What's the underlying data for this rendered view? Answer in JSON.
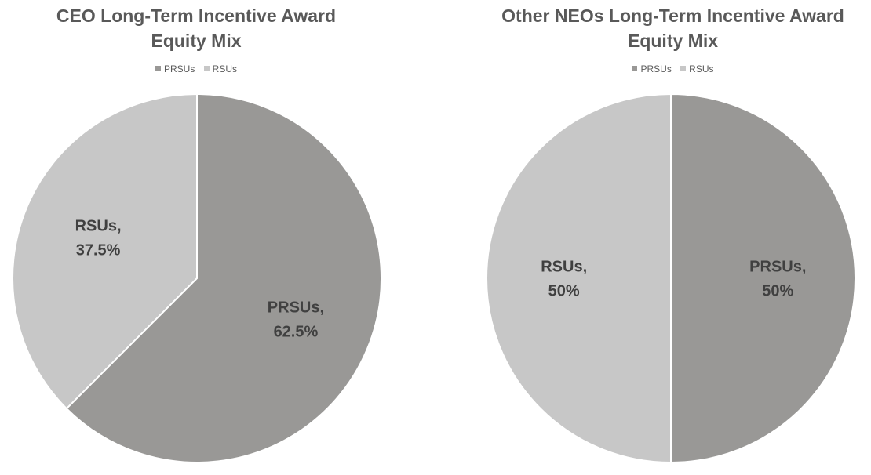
{
  "chart_data": [
    {
      "type": "pie",
      "title": "CEO Long-Term Incentive Award\nEquity Mix",
      "legend": [
        "PRSUs",
        "RSUs"
      ],
      "legend_position": "top",
      "slices": [
        {
          "name": "PRSUs",
          "value": 62.5,
          "label": "PRSUs,\n62.5%",
          "color": "#999896"
        },
        {
          "name": "RSUs",
          "value": 37.5,
          "label": "RSUs,\n37.5%",
          "color": "#c7c7c7"
        }
      ]
    },
    {
      "type": "pie",
      "title": "Other NEOs Long-Term Incentive Award\nEquity Mix",
      "legend": [
        "PRSUs",
        "RSUs"
      ],
      "legend_position": "top",
      "slices": [
        {
          "name": "PRSUs",
          "value": 50,
          "label": "PRSUs,\n50%",
          "color": "#999896"
        },
        {
          "name": "RSUs",
          "value": 50,
          "label": "RSUs,\n50%",
          "color": "#c7c7c7"
        }
      ]
    }
  ]
}
